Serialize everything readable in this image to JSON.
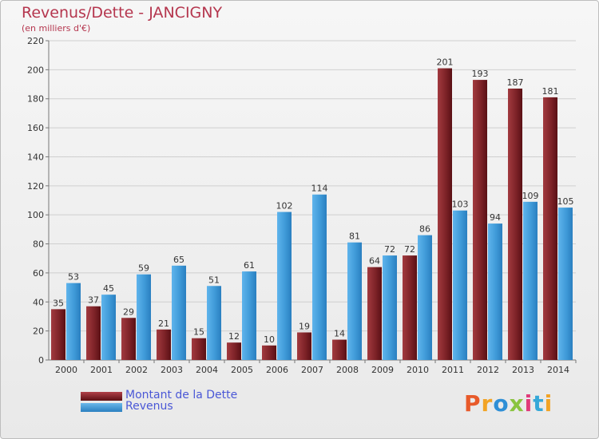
{
  "title": "Revenus/Dette - JANCIGNY",
  "subtitle": "(en milliers d'€)",
  "colors": {
    "title": "#b5364e",
    "debt": "#7a1f24",
    "revenue": "#3f9ad8",
    "legend_text": "#4a57d6"
  },
  "legend": {
    "debt_label": "Montant de la Dette",
    "revenue_label": "Revenus"
  },
  "logo": "Proxiti",
  "chart_data": {
    "type": "bar",
    "categories": [
      "2000",
      "2001",
      "2002",
      "2003",
      "2004",
      "2005",
      "2006",
      "2007",
      "2008",
      "2009",
      "2010",
      "2011",
      "2012",
      "2013",
      "2014"
    ],
    "series": [
      {
        "name": "Montant de la Dette",
        "color": "#7a1f24",
        "values": [
          35,
          37,
          29,
          21,
          15,
          12,
          10,
          19,
          14,
          64,
          72,
          201,
          193,
          187,
          181
        ]
      },
      {
        "name": "Revenus",
        "color": "#3f9ad8",
        "values": [
          53,
          45,
          59,
          65,
          51,
          61,
          102,
          114,
          81,
          72,
          86,
          103,
          94,
          109,
          105
        ]
      }
    ],
    "ylim": [
      0,
      220
    ],
    "yticks": [
      0,
      20,
      40,
      60,
      80,
      100,
      120,
      140,
      160,
      180,
      200,
      220
    ],
    "grid": true,
    "legend_position": "bottom-left"
  }
}
